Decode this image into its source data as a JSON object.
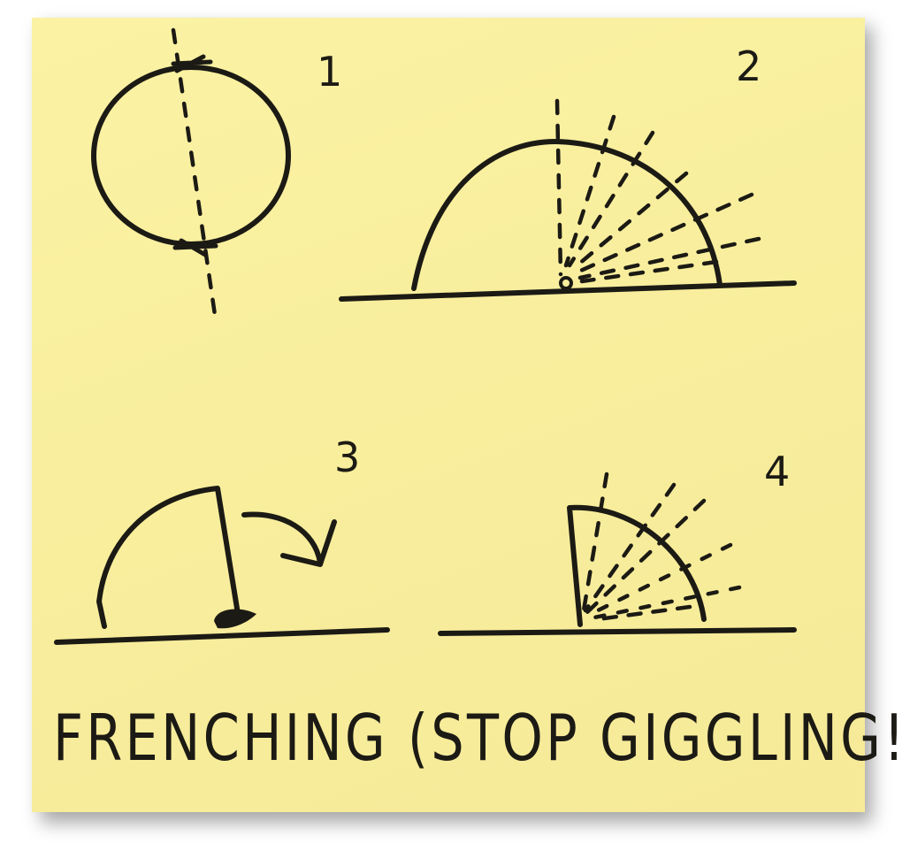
{
  "steps": [
    {
      "label": "1"
    },
    {
      "label": "2"
    },
    {
      "label": "3"
    },
    {
      "label": "4"
    }
  ],
  "caption": "FRENCHING (STOP GIGGLING!)",
  "colors": {
    "note": "#f8ee9d",
    "ink": "#1c1a14"
  }
}
